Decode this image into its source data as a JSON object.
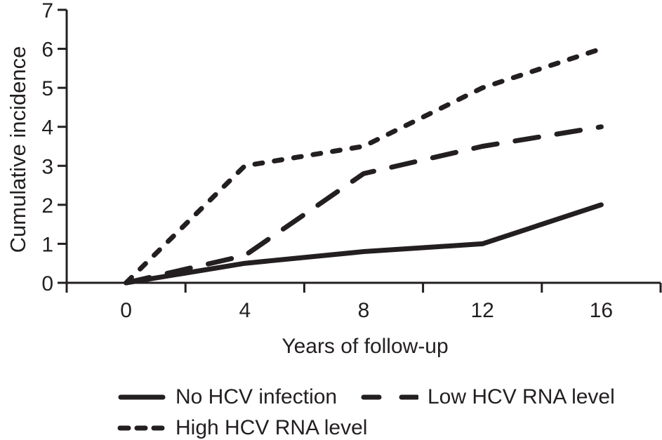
{
  "figure": {
    "background": "#ffffff",
    "ink_color": "#231f20"
  },
  "chart_data": {
    "type": "line",
    "xlabel": "Years of follow-up",
    "ylabel": "Cumulative incidence",
    "categories": [
      "0",
      "4",
      "8",
      "12",
      "16"
    ],
    "yticks": [
      0,
      1,
      2,
      3,
      4,
      5,
      6,
      7
    ],
    "ylim": [
      0,
      7
    ],
    "grid": false,
    "legend_position": "bottom",
    "series": [
      {
        "name": "No HCV infection",
        "style": "solid",
        "values": [
          0,
          0.5,
          0.8,
          1.0,
          2.0
        ]
      },
      {
        "name": "Low HCV RNA level",
        "style": "long-dash",
        "values": [
          0,
          0.7,
          2.8,
          3.5,
          4.0
        ]
      },
      {
        "name": "High HCV RNA level",
        "style": "short-dash",
        "values": [
          0,
          3.0,
          3.5,
          5.0,
          6.0
        ]
      }
    ]
  }
}
